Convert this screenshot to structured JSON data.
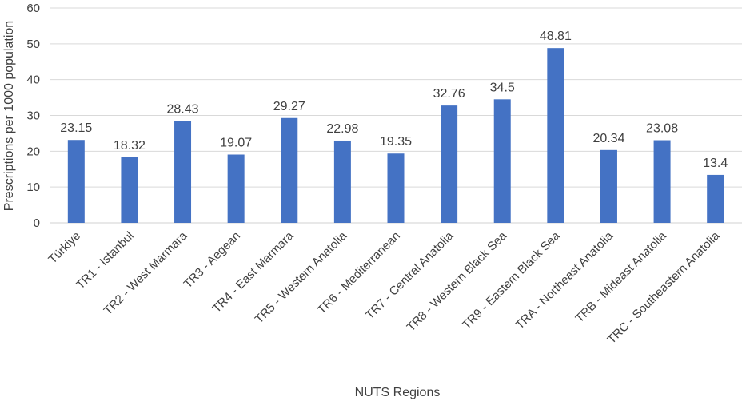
{
  "chart_data": {
    "type": "bar",
    "xlabel": "NUTS Regions",
    "ylabel": "Prescriptions per 1000 population",
    "ylim": [
      0,
      60
    ],
    "yticks": [
      0,
      10,
      20,
      30,
      40,
      50,
      60
    ],
    "grid": true,
    "bar_color": "#4472C4",
    "grid_color": "#D9D9D9",
    "categories": [
      "Türkiye",
      "TR1 - Istanbul",
      "TR2 - West Marmara",
      "TR3 - Aegean",
      "TR4 - East Marmara",
      "TR5 - Western Anatolia",
      "TR6 - Mediterranean",
      "TR7 - Central Anatolia",
      "TR8 - Western Black Sea",
      "TR9 - Eastern Black Sea",
      "TRA - Northeast Anatolia",
      "TRB - Mideast Anatolia",
      "TRC - Southeastern Anatolia"
    ],
    "values": [
      23.15,
      18.32,
      28.43,
      19.07,
      29.27,
      22.98,
      19.35,
      32.76,
      34.5,
      48.81,
      20.34,
      23.08,
      13.4
    ],
    "data_labels": [
      "23.15",
      "18.32",
      "28.43",
      "19.07",
      "29.27",
      "22.98",
      "19.35",
      "32.76",
      "34.5",
      "48.81",
      "20.34",
      "23.08",
      "13.4"
    ]
  }
}
